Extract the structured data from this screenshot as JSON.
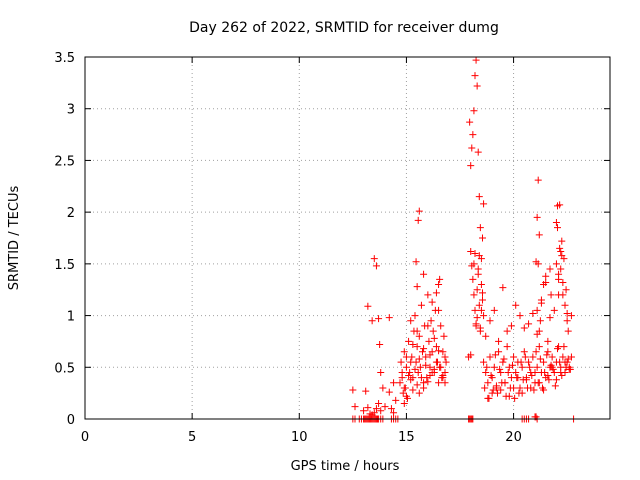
{
  "chart_data": {
    "type": "scatter",
    "title": "Day 262 of 2022, SRMTID for receiver dumg",
    "xlabel": "GPS time / hours",
    "ylabel": "SRMTID / TECUs",
    "xlim": [
      0,
      24.5
    ],
    "ylim": [
      0,
      3.5
    ],
    "xticks": [
      "0",
      "5",
      "10",
      "15",
      "20"
    ],
    "yticks": [
      "0",
      "0.5",
      "1",
      "1.5",
      "2",
      "2.5",
      "3",
      "3.5"
    ],
    "grid": true,
    "marker": "plus",
    "marker_color": "#ff0000",
    "series": [
      {
        "x": [
          12.5,
          12.6,
          12.8,
          12.9,
          13.0,
          13.05,
          13.1,
          13.15,
          13.2,
          13.25,
          13.3,
          13.35,
          13.4,
          13.45,
          13.5,
          13.55,
          13.6,
          13.65,
          13.7,
          13.8,
          13.9,
          14.3,
          14.4,
          14.5,
          14.6,
          17.9,
          17.95,
          18.0,
          18.05,
          20.4,
          20.5,
          20.6,
          20.7,
          21.1,
          22.8,
          12.5,
          12.6,
          13.0,
          13.1,
          13.2,
          13.3,
          13.4,
          13.5,
          13.6,
          13.7,
          13.8,
          14.0,
          14.2,
          14.3,
          14.4,
          14.5,
          13.2,
          13.4,
          13.5,
          13.6,
          13.7,
          13.75,
          13.8,
          13.9,
          14.2,
          14.4,
          14.7,
          14.75,
          14.8,
          14.85,
          14.9,
          14.95,
          15.0,
          15.05,
          15.1,
          15.15,
          15.2,
          15.25,
          15.3,
          15.35,
          15.4,
          15.45,
          15.5,
          15.55,
          15.6,
          15.65,
          15.7,
          15.75,
          15.8,
          15.85,
          15.9,
          15.95,
          16.0,
          16.05,
          16.1,
          16.15,
          16.2,
          16.25,
          16.3,
          16.35,
          16.4,
          16.45,
          16.5,
          16.55,
          16.6,
          16.65,
          16.7,
          16.75,
          16.8,
          16.85,
          14.8,
          14.9,
          15.0,
          15.1,
          15.2,
          15.3,
          15.4,
          15.5,
          15.6,
          15.7,
          15.8,
          15.9,
          16.0,
          16.1,
          16.2,
          16.3,
          16.4,
          16.5,
          16.6,
          16.7,
          16.8,
          14.9,
          15.0,
          15.2,
          15.3,
          15.5,
          15.6,
          15.8,
          16.0,
          16.1,
          16.3,
          16.5,
          16.7,
          16.8,
          15.45,
          15.5,
          15.55,
          15.6,
          15.8,
          16.2,
          16.4,
          16.5,
          16.55,
          17.95,
          18.0,
          18.05,
          18.1,
          18.15,
          18.2,
          18.25,
          18.3,
          18.35,
          18.4,
          18.45,
          18.5,
          18.55,
          18.6,
          18.0,
          18.05,
          18.1,
          18.15,
          18.2,
          18.25,
          18.3,
          18.35,
          18.4,
          18.45,
          18.5,
          18.55,
          18.6,
          17.9,
          18.0,
          18.05,
          18.1,
          18.15,
          18.2,
          18.25,
          18.3,
          18.35,
          18.4,
          18.45,
          18.5,
          18.55,
          18.6,
          18.7,
          18.8,
          18.9,
          19.0,
          19.1,
          19.2,
          19.3,
          19.4,
          19.5,
          19.6,
          19.7,
          19.8,
          19.9,
          20.0,
          20.1,
          20.2,
          20.3,
          20.4,
          20.5,
          20.6,
          20.7,
          20.8,
          20.9,
          21.0,
          21.1,
          21.2,
          21.3,
          21.4,
          21.5,
          21.6,
          21.7,
          21.8,
          21.9,
          22.0,
          22.1,
          22.2,
          22.3,
          22.4,
          22.5,
          22.6,
          22.7,
          18.65,
          18.75,
          18.85,
          18.95,
          19.05,
          19.15,
          19.25,
          19.35,
          19.45,
          19.55,
          19.65,
          19.75,
          19.85,
          19.95,
          20.05,
          20.15,
          20.25,
          20.35,
          20.45,
          20.55,
          20.65,
          20.75,
          20.85,
          20.95,
          21.05,
          21.15,
          21.25,
          21.35,
          21.45,
          21.55,
          21.65,
          21.75,
          21.85,
          21.95,
          22.05,
          22.15,
          22.25,
          22.35,
          22.45,
          22.55,
          22.65,
          18.7,
          18.9,
          19.1,
          19.3,
          19.5,
          19.7,
          19.9,
          20.1,
          20.3,
          20.5,
          20.7,
          20.9,
          21.1,
          21.3,
          21.5,
          21.7,
          21.9,
          22.1,
          22.3,
          22.5,
          22.7,
          18.8,
          19.0,
          19.2,
          19.4,
          19.6,
          19.8,
          20.0,
          20.2,
          20.4,
          20.6,
          20.8,
          21.0,
          21.2,
          21.4,
          21.6,
          21.8,
          22.0,
          22.2,
          22.4,
          22.6,
          21.0,
          21.05,
          21.1,
          21.15,
          21.2,
          21.25,
          21.3,
          21.4,
          21.5,
          21.6,
          21.7,
          21.75,
          22.0,
          22.05,
          22.1,
          22.15,
          22.2,
          22.25,
          22.3,
          22.35,
          22.4,
          22.45,
          22.5,
          22.55,
          21.15,
          22.05,
          22.15,
          21.1,
          21.2,
          22.0,
          22.2,
          21.05,
          22.25,
          22.1
        ],
        "y": [
          0,
          0,
          0,
          0,
          0,
          0,
          0,
          0,
          0,
          0,
          0,
          0,
          0,
          0,
          0,
          0,
          0,
          0,
          0,
          0,
          0,
          0,
          0,
          0,
          0,
          0,
          0,
          0,
          0,
          0,
          0,
          0,
          0,
          0,
          0,
          0.28,
          0.12,
          0.08,
          0.27,
          0.11,
          0.05,
          0.04,
          0.06,
          0.1,
          0.15,
          0.08,
          0.12,
          0.26,
          0.1,
          0.06,
          0.18,
          1.09,
          0.95,
          1.55,
          1.48,
          0.97,
          0.72,
          0.45,
          0.3,
          0.98,
          0.35,
          0.35,
          0.55,
          0.4,
          0.25,
          0.65,
          0.3,
          0.5,
          0.2,
          0.75,
          0.45,
          0.95,
          0.6,
          0.4,
          0.85,
          1.0,
          0.55,
          0.7,
          0.45,
          0.8,
          0.5,
          1.1,
          0.65,
          0.35,
          0.9,
          0.6,
          0.4,
          1.2,
          0.75,
          0.5,
          0.95,
          0.65,
          0.85,
          0.45,
          1.05,
          0.7,
          0.55,
          1.3,
          0.5,
          0.9,
          0.4,
          0.65,
          0.8,
          0.35,
          0.55,
          0.45,
          0.3,
          0.6,
          0.42,
          0.55,
          0.72,
          0.48,
          0.85,
          0.58,
          0.4,
          0.68,
          0.52,
          0.9,
          0.62,
          0.45,
          0.78,
          0.55,
          0.66,
          0.5,
          0.42,
          0.6,
          0.15,
          0.22,
          0.38,
          0.28,
          0.33,
          0.25,
          0.3,
          0.36,
          0.42,
          0.48,
          0.35,
          0.4,
          0.45,
          1.52,
          1.28,
          1.92,
          2.01,
          1.4,
          1.13,
          1.22,
          1.05,
          1.35,
          2.87,
          2.45,
          2.62,
          2.75,
          2.98,
          3.32,
          3.47,
          3.22,
          2.58,
          2.15,
          1.85,
          1.55,
          1.75,
          2.08,
          1.62,
          1.48,
          1.35,
          1.2,
          1.05,
          0.92,
          1.25,
          1.4,
          1.1,
          0.88,
          1.3,
          1.15,
          1.0,
          0.6,
          0.62,
          0.0,
          0.0,
          1.5,
          1.6,
          0.9,
          0.98,
          1.45,
          1.58,
          0.85,
          1.05,
          1.22,
          0.55,
          0.45,
          0.35,
          0.6,
          0.4,
          0.5,
          0.3,
          0.65,
          0.45,
          0.55,
          0.35,
          0.7,
          0.5,
          0.4,
          0.6,
          0.45,
          0.55,
          0.3,
          0.5,
          0.65,
          0.4,
          0.55,
          0.45,
          0.6,
          0.35,
          0.5,
          0.7,
          0.45,
          0.55,
          0.4,
          0.65,
          0.5,
          0.6,
          0.45,
          0.55,
          0.7,
          0.5,
          0.6,
          0.45,
          0.55,
          0.5,
          0.6,
          0.3,
          0.5,
          0.2,
          0.42,
          0.28,
          0.62,
          0.25,
          0.48,
          0.35,
          0.58,
          0.22,
          0.45,
          0.3,
          0.52,
          0.2,
          0.4,
          0.25,
          0.55,
          0.38,
          0.6,
          0.3,
          0.5,
          0.42,
          0.28,
          0.65,
          0.35,
          0.58,
          0.3,
          0.45,
          0.62,
          0.38,
          0.52,
          0.48,
          0.32,
          0.68,
          0.55,
          0.42,
          0.7,
          0.5,
          0.58,
          0.48,
          0.8,
          0.95,
          1.05,
          0.75,
          1.27,
          0.85,
          0.9,
          1.1,
          1.0,
          0.88,
          0.92,
          1.02,
          0.82,
          1.12,
          1.32,
          0.98,
          1.05,
          1.4,
          1.2,
          0.95,
          1.0,
          0.2,
          0.25,
          0.32,
          0.28,
          0.35,
          0.22,
          0.3,
          0.4,
          0.25,
          0.38,
          0.3,
          0.45,
          0.35,
          0.28,
          0.42,
          0.5,
          0.38,
          0.45,
          0.55,
          0.48,
          0.02,
          0.02,
          1.05,
          1.5,
          0.85,
          0.95,
          1.15,
          1.3,
          1.38,
          0.75,
          1.45,
          1.2,
          1.5,
          1.85,
          1.2,
          1.65,
          1.45,
          1.72,
          1.32,
          1.55,
          1.1,
          1.25,
          1.02,
          0.85,
          2.31,
          2.06,
          2.07,
          1.95,
          1.78,
          1.9,
          1.62,
          1.52,
          1.58,
          1.35
        ]
      }
    ]
  }
}
